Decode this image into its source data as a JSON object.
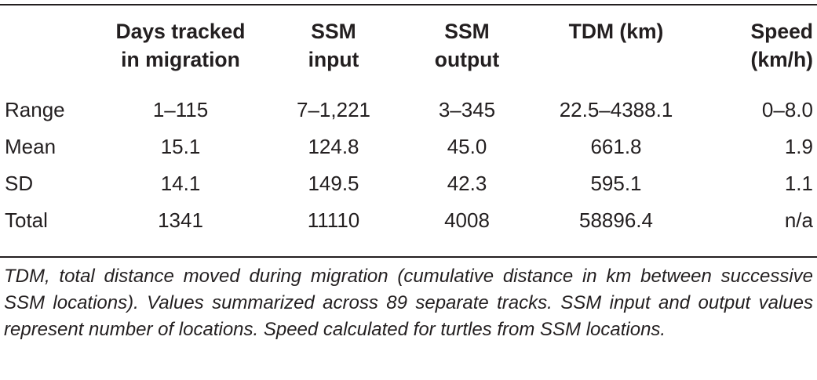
{
  "table": {
    "headers": [
      "",
      "Days tracked in migration",
      "SSM input",
      "SSM output",
      "TDM (km)",
      "Speed (km/h)"
    ],
    "header_lines": [
      [
        ""
      ],
      [
        "Days tracked",
        "in migration"
      ],
      [
        "SSM",
        "input"
      ],
      [
        "SSM",
        "output"
      ],
      [
        "TDM (km)"
      ],
      [
        "Speed",
        "(km/h)"
      ]
    ],
    "rows": [
      [
        "Range",
        "1–115",
        "7–1,221",
        "3–345",
        "22.5–4388.1",
        "0–8.0"
      ],
      [
        "Mean",
        "15.1",
        "124.8",
        "45.0",
        "661.8",
        "1.9"
      ],
      [
        "SD",
        "14.1",
        "149.5",
        "42.3",
        "595.1",
        "1.1"
      ],
      [
        "Total",
        "1341",
        "11110",
        "4008",
        "58896.4",
        "n/a"
      ]
    ]
  },
  "footnote": "TDM, total distance moved during migration (cumulative distance in km between successive SSM locations). Values summarized across 89 separate tracks. SSM input and output values represent number of locations. Speed calculated for turtles from SSM locations."
}
